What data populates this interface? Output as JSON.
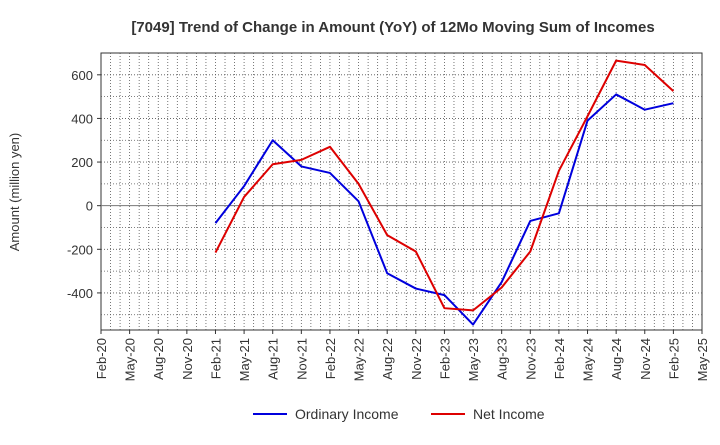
{
  "chart_data": {
    "type": "line",
    "title": "[7049]  Trend of Change in Amount (YoY) of 12Mo Moving Sum of Incomes",
    "xlabel": "",
    "ylabel": "Amount (million yen)",
    "ylim": [
      -570,
      700
    ],
    "yticks": [
      -400,
      -200,
      0,
      200,
      400,
      600
    ],
    "ytick_labels": [
      "-400",
      "-200",
      "0",
      "200",
      "400",
      "600"
    ],
    "categories": [
      "Feb-20",
      "May-20",
      "Aug-20",
      "Nov-20",
      "Feb-21",
      "May-21",
      "Aug-21",
      "Nov-21",
      "Feb-22",
      "May-22",
      "Aug-22",
      "Nov-22",
      "Feb-23",
      "May-23",
      "Aug-23",
      "Nov-23",
      "Feb-24",
      "May-24",
      "Aug-24",
      "Nov-24",
      "Feb-25",
      "May-25"
    ],
    "grid": true,
    "legend_position": "bottom",
    "series": [
      {
        "name": "Ordinary Income",
        "color": "#0000dd",
        "values": [
          null,
          null,
          null,
          null,
          -80,
          90,
          300,
          180,
          150,
          20,
          -310,
          -380,
          -410,
          -545,
          -350,
          -70,
          -35,
          390,
          510,
          440,
          470,
          null
        ]
      },
      {
        "name": "Net Income",
        "color": "#dd0000",
        "values": [
          null,
          null,
          null,
          null,
          -215,
          40,
          190,
          210,
          270,
          100,
          -135,
          -210,
          -470,
          -480,
          -375,
          -210,
          160,
          410,
          665,
          645,
          525,
          null
        ]
      }
    ]
  }
}
